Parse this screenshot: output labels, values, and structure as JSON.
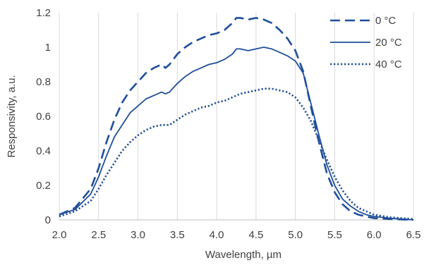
{
  "chart_data": {
    "type": "line",
    "title": "",
    "xlabel": "Wavelength, µm",
    "ylabel": "Responsivity, a.u.",
    "xlim": [
      2.0,
      6.5
    ],
    "ylim": [
      0,
      1.2
    ],
    "xticks": [
      2.0,
      2.5,
      3.0,
      3.5,
      4.0,
      4.5,
      5.0,
      5.5,
      6.0,
      6.5
    ],
    "xtick_labels": [
      "2.0",
      "2.5",
      "3.0",
      "3.5",
      "4.0",
      "4.5",
      "5.0",
      "5.5",
      "6.0",
      "6.5"
    ],
    "yticks": [
      0,
      0.2,
      0.4,
      0.6,
      0.8,
      1.0,
      1.2
    ],
    "ytick_labels": [
      "0",
      "0.2",
      "0.4",
      "0.6",
      "0.8",
      "1",
      "1.2"
    ],
    "grid": "vertical",
    "legend_position": "top-right",
    "line_color": "#1F4E9A",
    "series": [
      {
        "name": "0 °C",
        "style": "dashed",
        "x": [
          2.0,
          2.2,
          2.4,
          2.5,
          2.6,
          2.7,
          2.8,
          2.9,
          3.0,
          3.1,
          3.2,
          3.3,
          3.35,
          3.4,
          3.5,
          3.6,
          3.7,
          3.8,
          3.9,
          4.0,
          4.1,
          4.2,
          4.25,
          4.3,
          4.4,
          4.5,
          4.6,
          4.7,
          4.8,
          4.9,
          5.0,
          5.1,
          5.2,
          5.3,
          5.4,
          5.5,
          5.6,
          5.7,
          5.8,
          5.9,
          6.0,
          6.2,
          6.5
        ],
        "y": [
          0.03,
          0.07,
          0.18,
          0.3,
          0.45,
          0.58,
          0.68,
          0.75,
          0.8,
          0.85,
          0.88,
          0.9,
          0.88,
          0.9,
          0.96,
          1.0,
          1.03,
          1.05,
          1.07,
          1.08,
          1.1,
          1.14,
          1.17,
          1.17,
          1.16,
          1.17,
          1.16,
          1.14,
          1.1,
          1.05,
          0.98,
          0.86,
          0.65,
          0.45,
          0.27,
          0.16,
          0.09,
          0.05,
          0.03,
          0.02,
          0.01,
          0.005,
          0.0
        ]
      },
      {
        "name": "20 °C",
        "style": "solid",
        "x": [
          2.0,
          2.2,
          2.4,
          2.5,
          2.6,
          2.7,
          2.8,
          2.9,
          3.0,
          3.1,
          3.2,
          3.3,
          3.35,
          3.4,
          3.5,
          3.6,
          3.7,
          3.8,
          3.9,
          4.0,
          4.1,
          4.2,
          4.25,
          4.3,
          4.4,
          4.5,
          4.6,
          4.7,
          4.8,
          4.9,
          5.0,
          5.1,
          5.2,
          5.3,
          5.4,
          5.5,
          5.6,
          5.7,
          5.8,
          5.9,
          6.0,
          6.2,
          6.5
        ],
        "y": [
          0.03,
          0.06,
          0.15,
          0.25,
          0.37,
          0.48,
          0.55,
          0.62,
          0.66,
          0.7,
          0.72,
          0.74,
          0.73,
          0.74,
          0.79,
          0.83,
          0.86,
          0.88,
          0.9,
          0.91,
          0.93,
          0.96,
          0.99,
          0.99,
          0.98,
          0.99,
          1.0,
          0.99,
          0.97,
          0.95,
          0.92,
          0.85,
          0.67,
          0.49,
          0.32,
          0.2,
          0.12,
          0.08,
          0.05,
          0.03,
          0.02,
          0.01,
          0.0
        ]
      },
      {
        "name": "40 °C",
        "style": "dotted",
        "x": [
          2.0,
          2.2,
          2.4,
          2.5,
          2.6,
          2.7,
          2.8,
          2.9,
          3.0,
          3.1,
          3.2,
          3.3,
          3.4,
          3.5,
          3.6,
          3.7,
          3.8,
          3.9,
          4.0,
          4.1,
          4.2,
          4.3,
          4.4,
          4.5,
          4.6,
          4.7,
          4.8,
          4.9,
          5.0,
          5.1,
          5.2,
          5.3,
          5.4,
          5.5,
          5.6,
          5.7,
          5.8,
          5.9,
          6.0,
          6.2,
          6.5
        ],
        "y": [
          0.02,
          0.05,
          0.11,
          0.18,
          0.26,
          0.33,
          0.4,
          0.45,
          0.49,
          0.52,
          0.54,
          0.55,
          0.55,
          0.58,
          0.61,
          0.63,
          0.65,
          0.66,
          0.68,
          0.69,
          0.71,
          0.73,
          0.74,
          0.75,
          0.76,
          0.76,
          0.75,
          0.74,
          0.71,
          0.65,
          0.57,
          0.46,
          0.35,
          0.25,
          0.17,
          0.11,
          0.07,
          0.05,
          0.03,
          0.015,
          0.005
        ]
      }
    ]
  }
}
